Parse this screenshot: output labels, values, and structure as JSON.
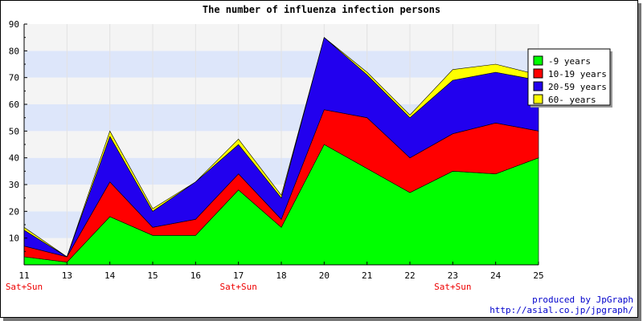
{
  "chart_data": {
    "type": "area",
    "stacked": true,
    "title": "The number of influenza infection persons",
    "xlabel": "",
    "ylabel": "",
    "ylim": [
      0,
      90
    ],
    "yticks": [
      10,
      20,
      30,
      40,
      50,
      60,
      70,
      80,
      90
    ],
    "grid": "horizontal bands",
    "legend_position": "top-right",
    "categories": [
      "11",
      "13",
      "14",
      "15",
      "16",
      "17",
      "18",
      "20",
      "21",
      "22",
      "23",
      "24",
      "25"
    ],
    "category_sublabels": [
      "Sat+Sun",
      "",
      "",
      "",
      "",
      "Sat+Sun",
      "",
      "",
      "",
      "",
      "Sat+Sun",
      "",
      ""
    ],
    "series": [
      {
        "name": "-9 years",
        "color": "#00ff00",
        "values": [
          3,
          1,
          18,
          11,
          11,
          28,
          14,
          45,
          36,
          27,
          35,
          34,
          40
        ]
      },
      {
        "name": "10-19 years",
        "color": "#ff0000",
        "values": [
          4,
          2,
          13,
          3,
          6,
          6,
          3,
          13,
          19,
          13,
          14,
          19,
          10
        ]
      },
      {
        "name": "20-59 years",
        "color": "#2200ee",
        "values": [
          6,
          0,
          17,
          6,
          14,
          11,
          8,
          27,
          16,
          15,
          20,
          19,
          19
        ]
      },
      {
        "name": "60- years",
        "color": "#ffff00",
        "values": [
          1,
          0,
          2,
          1,
          0,
          2,
          1,
          0,
          1,
          1,
          4,
          3,
          2
        ]
      }
    ]
  },
  "credits": {
    "line1": "produced by JpGraph",
    "line2": "http://asial.co.jp/jpgraph/"
  }
}
